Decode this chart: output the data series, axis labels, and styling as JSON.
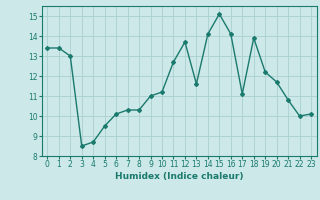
{
  "x": [
    0,
    1,
    2,
    3,
    4,
    5,
    6,
    7,
    8,
    9,
    10,
    11,
    12,
    13,
    14,
    15,
    16,
    17,
    18,
    19,
    20,
    21,
    22,
    23
  ],
  "y": [
    13.4,
    13.4,
    13.0,
    8.5,
    8.7,
    9.5,
    10.1,
    10.3,
    10.3,
    11.0,
    11.2,
    12.7,
    13.7,
    11.6,
    14.1,
    15.1,
    14.1,
    11.1,
    13.9,
    12.2,
    11.7,
    10.8,
    10.0,
    10.1
  ],
  "line_color": "#1a7a6e",
  "marker": "D",
  "marker_size": 2,
  "linewidth": 1.0,
  "bg_color": "#cce8e8",
  "grid_color": "#aad0d0",
  "xlabel": "Humidex (Indice chaleur)",
  "ylim": [
    8,
    15.5
  ],
  "xlim": [
    -0.5,
    23.5
  ],
  "yticks": [
    8,
    9,
    10,
    11,
    12,
    13,
    14,
    15
  ],
  "xticks": [
    0,
    1,
    2,
    3,
    4,
    5,
    6,
    7,
    8,
    9,
    10,
    11,
    12,
    13,
    14,
    15,
    16,
    17,
    18,
    19,
    20,
    21,
    22,
    23
  ],
  "tick_color": "#1a7a6e",
  "label_fontsize": 6.5,
  "tick_fontsize": 5.5
}
